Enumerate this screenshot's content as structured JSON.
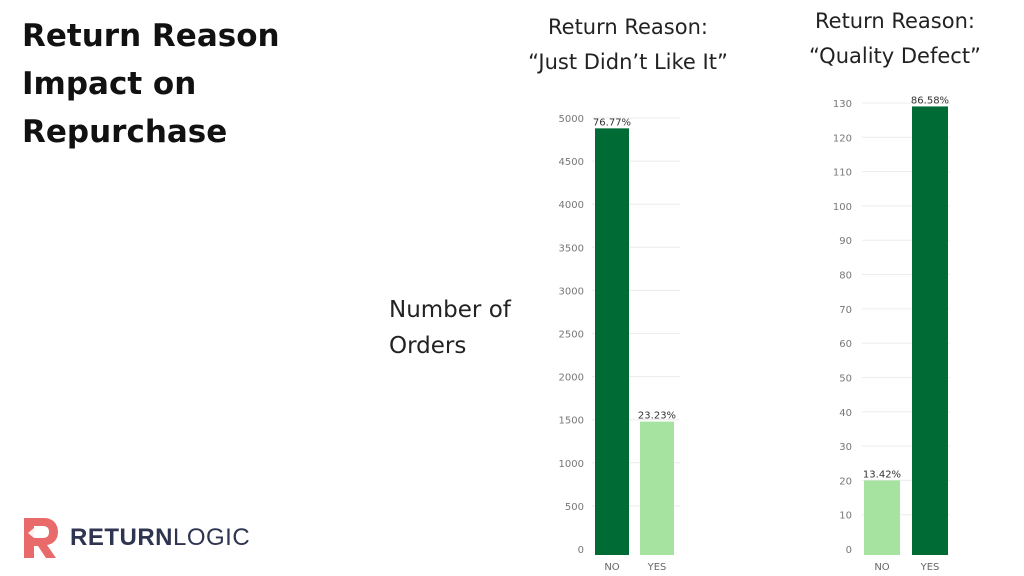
{
  "slide": {
    "title_lines": [
      "Return Reason",
      "Impact on",
      "Repurchase"
    ],
    "ylabel_lines": [
      "Number of",
      "Orders"
    ]
  },
  "logo": {
    "text_bold": "RETURN",
    "text_regular": "LOGIC",
    "icon": "returnlogic-r-icon",
    "color": "#e86a6a"
  },
  "colors": {
    "dark_green": "#006b35",
    "light_green": "#a6e3a1"
  },
  "chart_data": [
    {
      "type": "bar",
      "title_lines": [
        "Return Reason:",
        "“Just Didn’t Like It”"
      ],
      "categories": [
        "NO",
        "YES"
      ],
      "values": [
        4880,
        1478
      ],
      "data_labels": [
        "76.77%",
        "23.23%"
      ],
      "bar_colors": [
        "#006b35",
        "#a6e3a1"
      ],
      "yticks": [
        0,
        500,
        1000,
        1500,
        2000,
        2500,
        3000,
        3500,
        4000,
        4500,
        5000
      ],
      "ylim": [
        0,
        5000
      ],
      "grid": true
    },
    {
      "type": "bar",
      "title_lines": [
        "Return Reason:",
        "“Quality Defect”"
      ],
      "categories": [
        "NO",
        "YES"
      ],
      "values": [
        20,
        129
      ],
      "data_labels": [
        "13.42%",
        "86.58%"
      ],
      "bar_colors": [
        "#a6e3a1",
        "#006b35"
      ],
      "yticks": [
        0,
        10,
        20,
        30,
        40,
        50,
        60,
        70,
        80,
        90,
        100,
        110,
        120,
        130
      ],
      "ylim": [
        0,
        130
      ],
      "grid": true
    }
  ]
}
